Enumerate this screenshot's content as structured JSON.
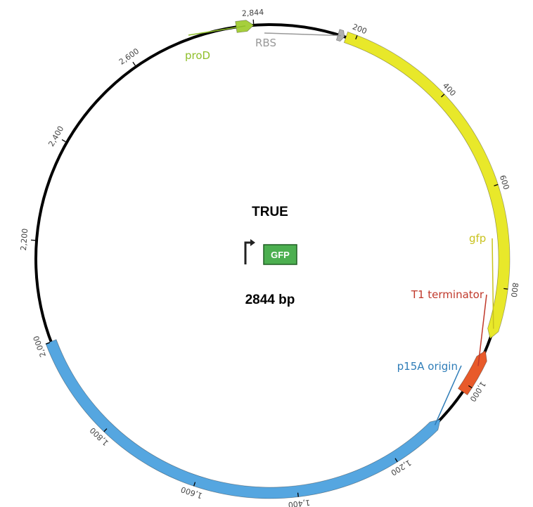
{
  "plasmid": {
    "name": "TRUE",
    "size_label": "2844 bp",
    "length": 2844
  },
  "glyph": {
    "gene_label": "GFP",
    "gene_color": "#4caf50"
  },
  "features": [
    {
      "id": "proD",
      "label": "proD",
      "start": 2810,
      "end": 2844,
      "color": "#a6cf3c",
      "label_color": "#8fbf2a",
      "direction": "forward"
    },
    {
      "id": "rbs",
      "label": "RBS",
      "start": 165,
      "end": 178,
      "color": "#b0b0b0",
      "label_color": "#999999",
      "direction": "forward"
    },
    {
      "id": "gfp",
      "label": "gfp",
      "start": 181,
      "end": 900,
      "color": "#e8e82a",
      "label_color": "#c9c21e",
      "direction": "forward"
    },
    {
      "id": "t1",
      "label": "T1 terminator",
      "start": 925,
      "end": 1016,
      "color": "#e85a2a",
      "label_color": "#c0392b",
      "direction": "reverse"
    },
    {
      "id": "p15a",
      "label": "p15A origin",
      "start": 1085,
      "end": 2001,
      "color": "#55a6e0",
      "label_color": "#2f7db8",
      "direction": "reverse"
    }
  ],
  "ticks": [
    {
      "pos": 200,
      "label": "200"
    },
    {
      "pos": 400,
      "label": "400"
    },
    {
      "pos": 600,
      "label": "600"
    },
    {
      "pos": 800,
      "label": "800"
    },
    {
      "pos": 1000,
      "label": "1,000"
    },
    {
      "pos": 1200,
      "label": "1,200"
    },
    {
      "pos": 1400,
      "label": "1,400"
    },
    {
      "pos": 1600,
      "label": "1,600"
    },
    {
      "pos": 1800,
      "label": "1,800"
    },
    {
      "pos": 2000,
      "label": "2,000"
    },
    {
      "pos": 2200,
      "label": "2,200"
    },
    {
      "pos": 2400,
      "label": "2,400"
    },
    {
      "pos": 2600,
      "label": "2,600"
    },
    {
      "pos": 2844,
      "label": "2,844"
    }
  ]
}
